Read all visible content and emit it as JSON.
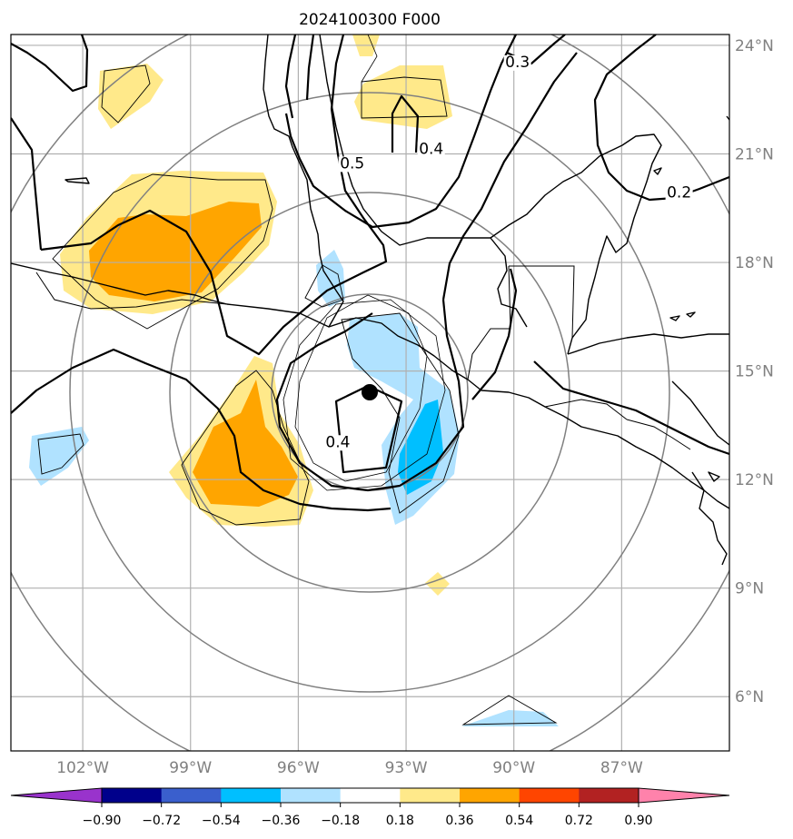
{
  "title": "2024100300 F000",
  "map": {
    "lon_range": [
      -104,
      -84
    ],
    "lat_range": [
      4.5,
      24.3
    ],
    "lat_ticks": [
      {
        "value": 24,
        "label": "24°N"
      },
      {
        "value": 21,
        "label": "21°N"
      },
      {
        "value": 18,
        "label": "18°N"
      },
      {
        "value": 15,
        "label": "15°N"
      },
      {
        "value": 12,
        "label": "12°N"
      },
      {
        "value": 9,
        "label": "9°N"
      },
      {
        "value": 6,
        "label": "6°N"
      }
    ],
    "lon_ticks": [
      {
        "value": -102,
        "label": "102°W"
      },
      {
        "value": -99,
        "label": "99°W"
      },
      {
        "value": -96,
        "label": "96°W"
      },
      {
        "value": -93,
        "label": "93°W"
      },
      {
        "value": -90,
        "label": "90°W"
      },
      {
        "value": -87,
        "label": "87°W"
      }
    ],
    "center": {
      "lon": -94.9,
      "lat": 14.3
    },
    "contour_labels": [
      {
        "text": "0.5",
        "lon": -94.5,
        "lat": 20.6
      },
      {
        "text": "0.4",
        "lon": -92.3,
        "lat": 21.0
      },
      {
        "text": "0.3",
        "lon": -89.9,
        "lat": 23.4
      },
      {
        "text": "0.2",
        "lon": -85.4,
        "lat": 19.8
      },
      {
        "text": "0.4",
        "lon": -94.9,
        "lat": 12.9
      }
    ]
  },
  "colorbar": {
    "boundaries": [
      -0.9,
      -0.72,
      -0.54,
      -0.36,
      -0.18,
      0.18,
      0.36,
      0.54,
      0.72,
      0.9
    ],
    "labels": [
      "−0.90",
      "−0.72",
      "−0.54",
      "−0.36",
      "−0.18",
      "0.18",
      "0.36",
      "0.54",
      "0.72",
      "0.90"
    ],
    "colors": [
      "#9933cc",
      "#00008b",
      "#3a5fcd",
      "#00bfff",
      "#b0e2ff",
      "#ffffff",
      "#ffe98a",
      "#ffa500",
      "#ff4500",
      "#b22222",
      "#ff82ab"
    ]
  }
}
